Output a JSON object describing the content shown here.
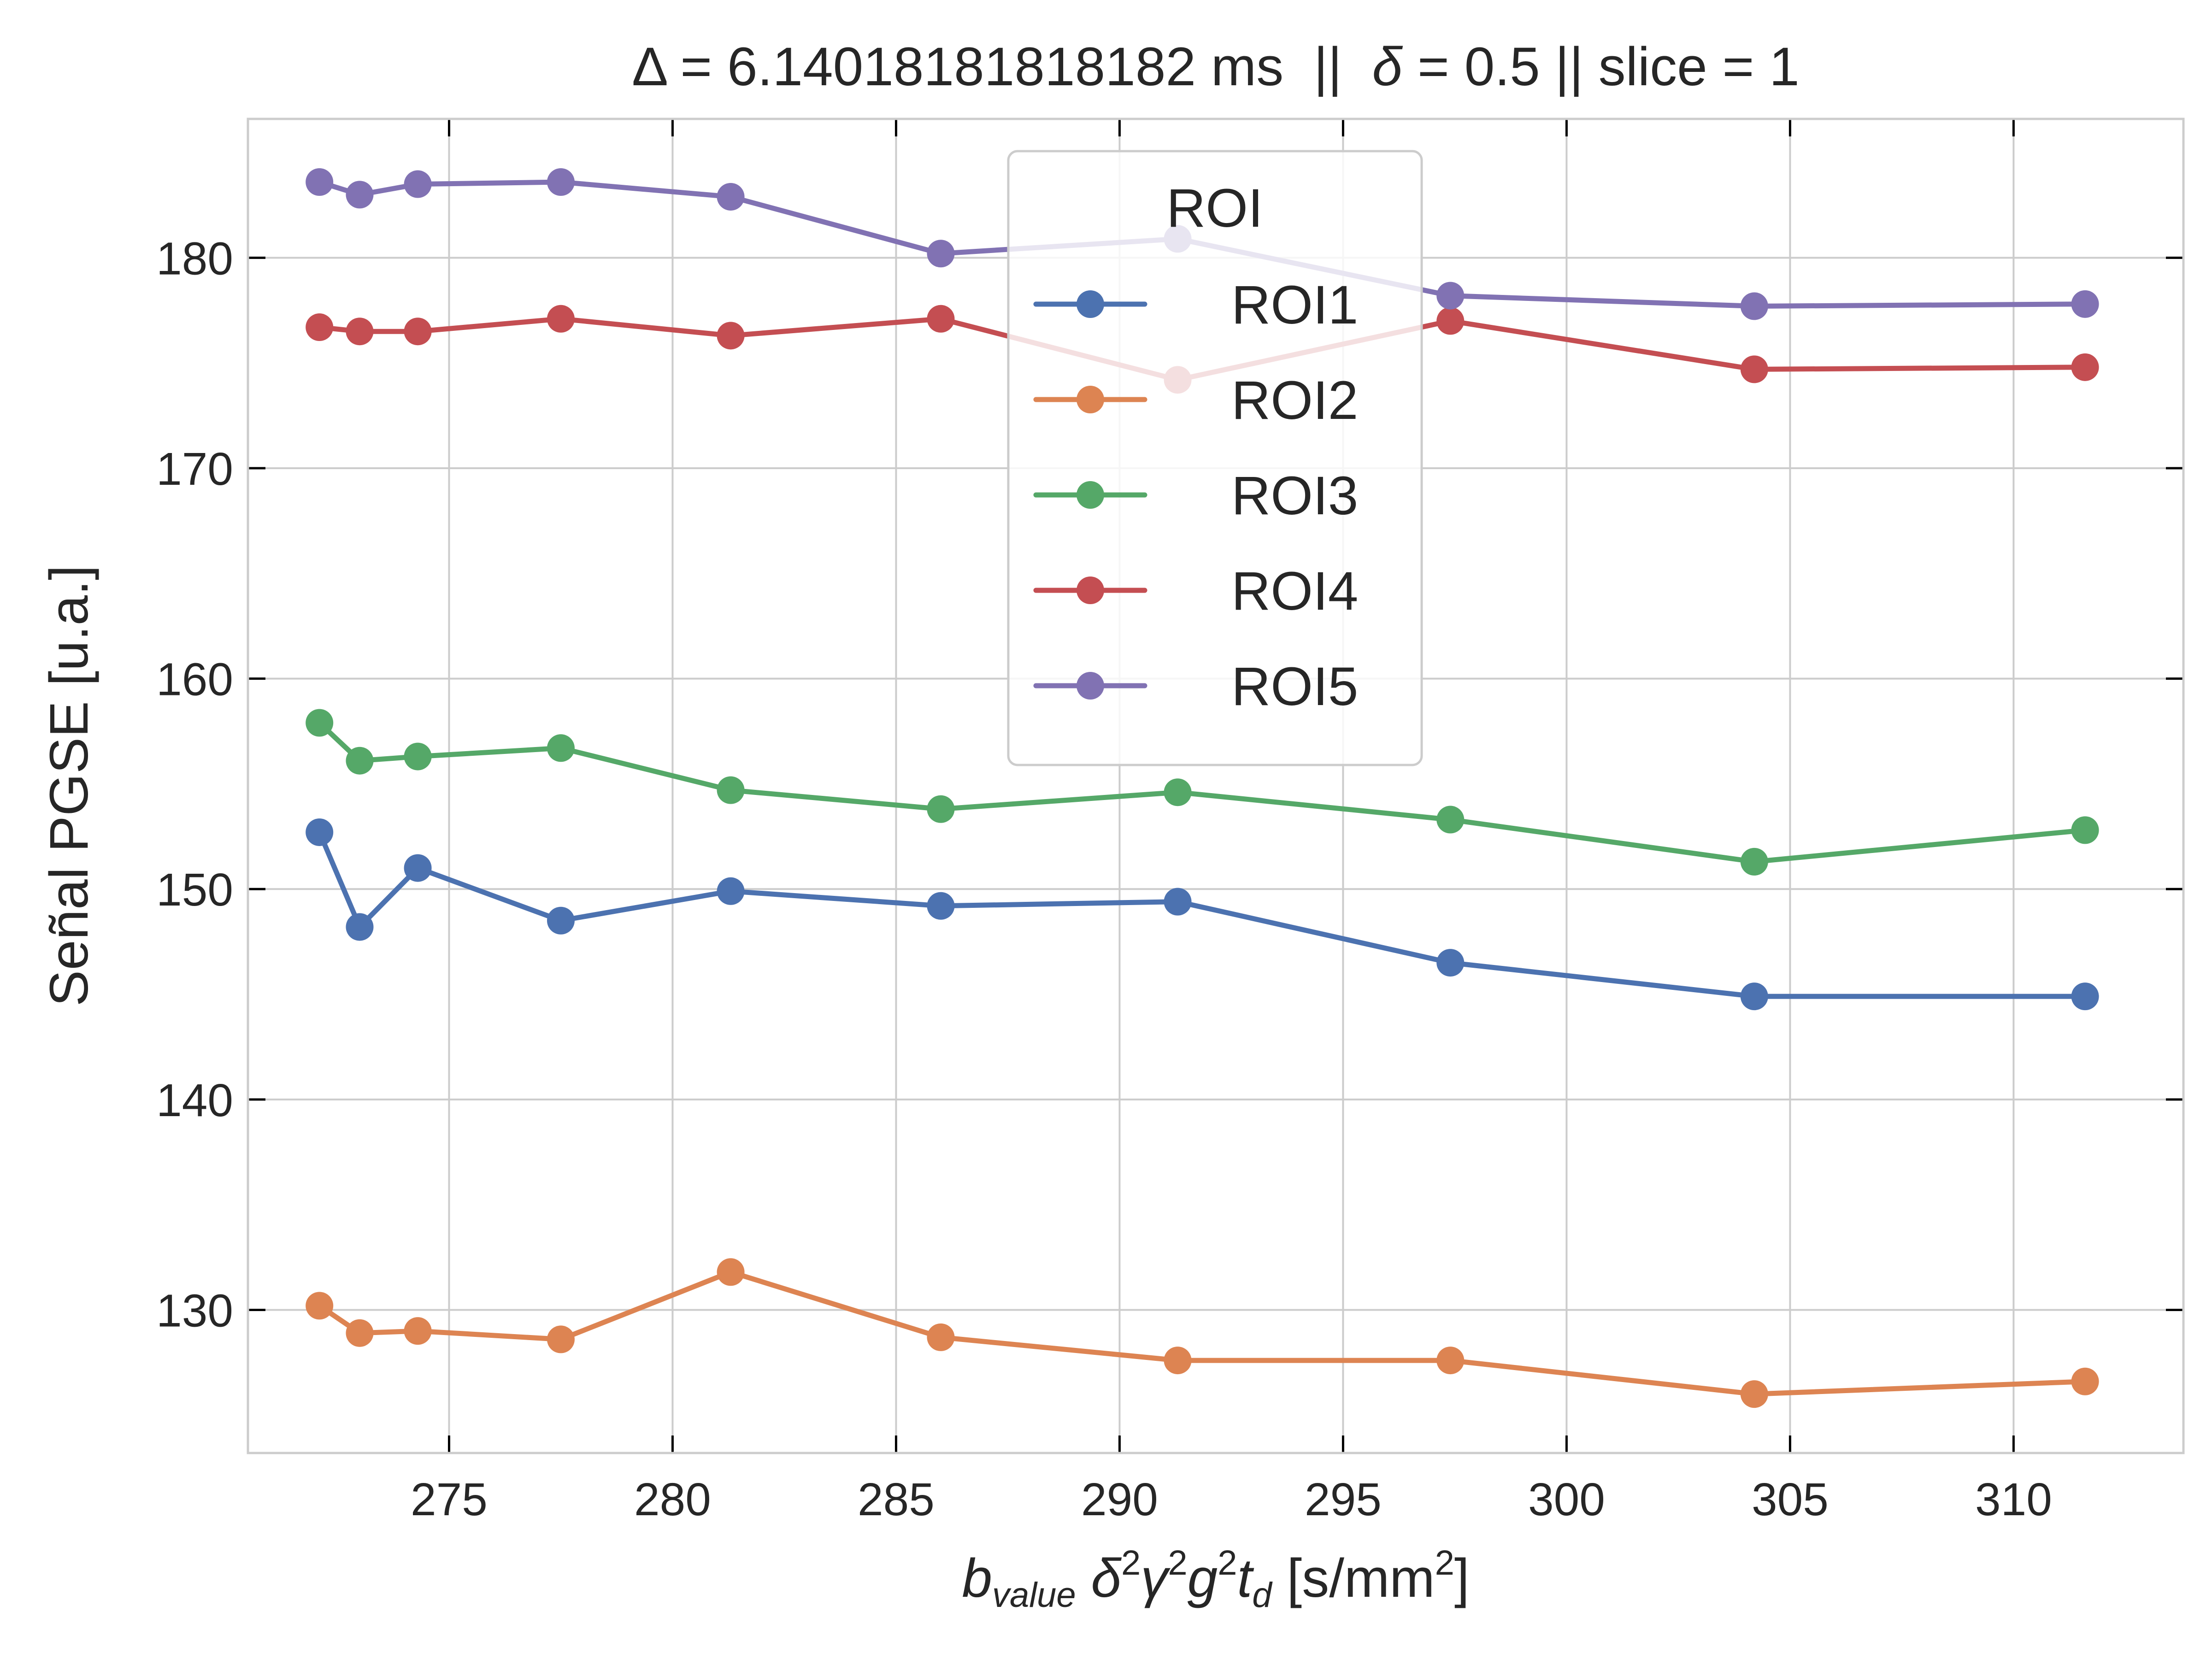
{
  "chart_data": {
    "type": "line",
    "title_parts": {
      "delta_symbol": "Δ",
      "delta_text": " = 6.14018181818182 ms  ||  ",
      "smalldelta_symbol": "δ",
      "rest_text": " = 0.5 || slice = 1"
    },
    "xlabel_parts": {
      "b": "b",
      "b_sub": "value",
      "d": "δ",
      "gamma": "γ",
      "g": "g",
      "t": "t",
      "t_sub": "d",
      "sq": "2",
      "unit_pre": "[s/mm",
      "unit_post": "]"
    },
    "ylabel": "Señal PGSE [u.a.]",
    "xlim": [
      270.5,
      313.8
    ],
    "ylim": [
      123.2,
      186.6
    ],
    "xticks": [
      275,
      280,
      285,
      290,
      295,
      300,
      305,
      310
    ],
    "yticks": [
      130,
      140,
      150,
      160,
      170,
      180
    ],
    "grid": true,
    "legend": {
      "title": "ROI",
      "placement": "upper-center"
    },
    "x": [
      272.1,
      273.0,
      274.3,
      277.5,
      281.3,
      286.0,
      291.3,
      297.4,
      304.2,
      311.6
    ],
    "series": [
      {
        "name": "ROI1",
        "color": "#4c72b0",
        "values": [
          152.7,
          148.2,
          151.0,
          148.5,
          149.9,
          149.2,
          149.4,
          146.5,
          144.9,
          144.9
        ]
      },
      {
        "name": "ROI2",
        "color": "#dd8452",
        "values": [
          130.2,
          128.9,
          129.0,
          128.6,
          131.8,
          128.7,
          127.6,
          127.6,
          126.0,
          126.6
        ]
      },
      {
        "name": "ROI3",
        "color": "#55a868",
        "values": [
          157.9,
          156.1,
          156.3,
          156.7,
          154.7,
          153.8,
          154.6,
          153.3,
          151.3,
          152.8
        ]
      },
      {
        "name": "ROI4",
        "color": "#c44e52",
        "values": [
          176.7,
          176.5,
          176.5,
          177.1,
          176.3,
          177.1,
          174.2,
          177.0,
          174.7,
          174.8
        ]
      },
      {
        "name": "ROI5",
        "color": "#8172b3",
        "values": [
          183.6,
          183.0,
          183.5,
          183.6,
          182.9,
          180.2,
          180.9,
          178.2,
          177.7,
          177.8
        ]
      }
    ]
  }
}
